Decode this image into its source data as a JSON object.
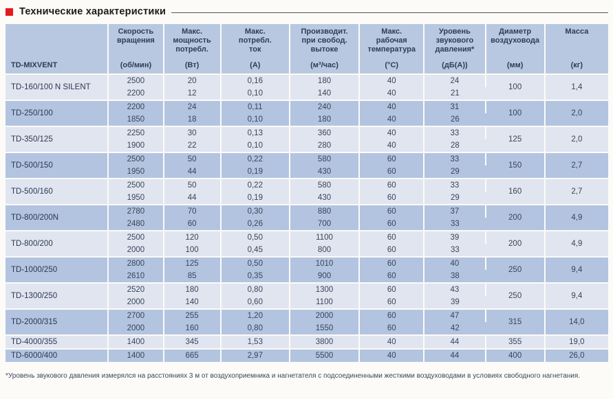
{
  "section": {
    "title": "Технические характеристики"
  },
  "colors": {
    "accent_red": "#e31a1f",
    "header_bg": "#b9c8e1",
    "row_light": "#e0e5f0",
    "row_dark": "#b2c4e0",
    "text": "#3a4557"
  },
  "table": {
    "columns": [
      {
        "label": "TD-MIXVENT",
        "unit": ""
      },
      {
        "label": "Скорость\nвращения",
        "unit": "(об/мин)"
      },
      {
        "label": "Макс.\nмощность\nпотребл.",
        "unit": "(Вт)"
      },
      {
        "label": "Макс.\nпотребл.\nток",
        "unit": "(А)"
      },
      {
        "label": "Производит.\nпри свобод.\nвытоке",
        "unit": "(м³/час)"
      },
      {
        "label": "Макс.\nрабочая\nтемпература",
        "unit": "(°С)"
      },
      {
        "label": "Уровень\nзвукового\nдавления*",
        "unit": "(дБ(А))"
      },
      {
        "label": "Диаметр\nвоздуховода",
        "unit": "(мм)"
      },
      {
        "label": "Масса",
        "unit": "(кг)"
      }
    ],
    "groups": [
      {
        "model": "TD-160/100 N SILENT",
        "rows": [
          [
            "2500",
            "20",
            "0,16",
            "180",
            "40",
            "24"
          ],
          [
            "2200",
            "12",
            "0,10",
            "140",
            "40",
            "21"
          ]
        ],
        "diameter": "100",
        "mass": "1,4"
      },
      {
        "model": "TD-250/100",
        "rows": [
          [
            "2200",
            "24",
            "0,11",
            "240",
            "40",
            "31"
          ],
          [
            "1850",
            "18",
            "0,10",
            "180",
            "40",
            "26"
          ]
        ],
        "diameter": "100",
        "mass": "2,0"
      },
      {
        "model": "TD-350/125",
        "rows": [
          [
            "2250",
            "30",
            "0,13",
            "360",
            "40",
            "33"
          ],
          [
            "1900",
            "22",
            "0,10",
            "280",
            "40",
            "28"
          ]
        ],
        "diameter": "125",
        "mass": "2,0"
      },
      {
        "model": "TD-500/150",
        "rows": [
          [
            "2500",
            "50",
            "0,22",
            "580",
            "60",
            "33"
          ],
          [
            "1950",
            "44",
            "0,19",
            "430",
            "60",
            "29"
          ]
        ],
        "diameter": "150",
        "mass": "2,7"
      },
      {
        "model": "TD-500/160",
        "rows": [
          [
            "2500",
            "50",
            "0,22",
            "580",
            "60",
            "33"
          ],
          [
            "1950",
            "44",
            "0,19",
            "430",
            "60",
            "29"
          ]
        ],
        "diameter": "160",
        "mass": "2,7"
      },
      {
        "model": "TD-800/200N",
        "rows": [
          [
            "2780",
            "70",
            "0,30",
            "880",
            "60",
            "37"
          ],
          [
            "2480",
            "60",
            "0,26",
            "700",
            "60",
            "33"
          ]
        ],
        "diameter": "200",
        "mass": "4,9"
      },
      {
        "model": "TD-800/200",
        "rows": [
          [
            "2500",
            "120",
            "0,50",
            "1100",
            "60",
            "39"
          ],
          [
            "2000",
            "100",
            "0,45",
            "800",
            "60",
            "33"
          ]
        ],
        "diameter": "200",
        "mass": "4,9"
      },
      {
        "model": "TD-1000/250",
        "rows": [
          [
            "2800",
            "125",
            "0,50",
            "1010",
            "60",
            "40"
          ],
          [
            "2610",
            "85",
            "0,35",
            "900",
            "60",
            "38"
          ]
        ],
        "diameter": "250",
        "mass": "9,4"
      },
      {
        "model": "TD-1300/250",
        "rows": [
          [
            "2520",
            "180",
            "0,80",
            "1300",
            "60",
            "43"
          ],
          [
            "2000",
            "140",
            "0,60",
            "1100",
            "60",
            "39"
          ]
        ],
        "diameter": "250",
        "mass": "9,4"
      },
      {
        "model": "TD-2000/315",
        "rows": [
          [
            "2700",
            "255",
            "1,20",
            "2000",
            "60",
            "47"
          ],
          [
            "2000",
            "160",
            "0,80",
            "1550",
            "60",
            "42"
          ]
        ],
        "diameter": "315",
        "mass": "14,0"
      },
      {
        "model": "TD-4000/355",
        "rows": [
          [
            "1400",
            "345",
            "1,53",
            "3800",
            "40",
            "44"
          ]
        ],
        "diameter": "355",
        "mass": "19,0"
      },
      {
        "model": "TD-6000/400",
        "rows": [
          [
            "1400",
            "665",
            "2,97",
            "5500",
            "40",
            "44"
          ]
        ],
        "diameter": "400",
        "mass": "26,0"
      }
    ]
  },
  "footnote": "*Уровень звукового давления измерялся на расстояниях 3 м от воздухоприемника и нагнетателя с подсоединенными жесткими воздуховодами в условиях свободного нагнетания."
}
